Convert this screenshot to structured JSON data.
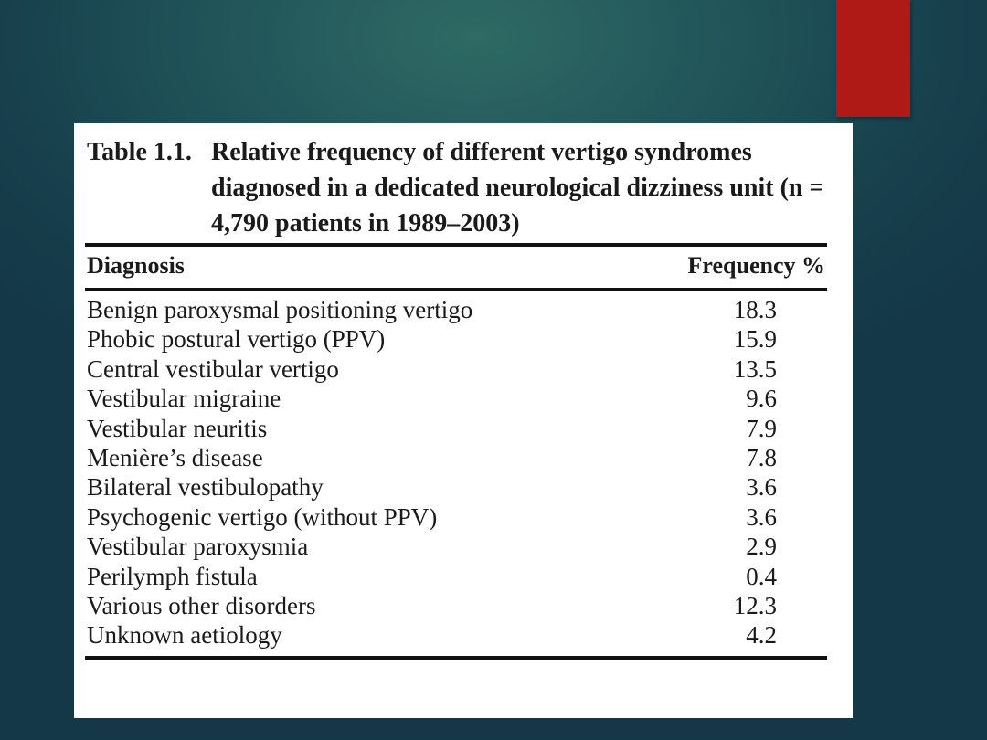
{
  "slide": {
    "accent_color": "#b01a16"
  },
  "table": {
    "caption_number": "Table 1.1.",
    "caption_text": "Relative frequency of different vertigo syndromes diagnosed in a dedicated neurological dizziness unit (n = 4,790 patients in 1989–2003)",
    "headers": {
      "diagnosis": "Diagnosis",
      "frequency": "Frequency %"
    },
    "rows": [
      {
        "diagnosis": "Benign paroxysmal positioning vertigo",
        "frequency": "18.3"
      },
      {
        "diagnosis": "Phobic postural vertigo (PPV)",
        "frequency": "15.9"
      },
      {
        "diagnosis": "Central vestibular vertigo",
        "frequency": "13.5"
      },
      {
        "diagnosis": "Vestibular migraine",
        "frequency": "9.6"
      },
      {
        "diagnosis": "Vestibular neuritis",
        "frequency": "7.9"
      },
      {
        "diagnosis": "Menière’s disease",
        "frequency": "7.8"
      },
      {
        "diagnosis": "Bilateral vestibulopathy",
        "frequency": "3.6"
      },
      {
        "diagnosis": "Psychogenic vertigo (without PPV)",
        "frequency": "3.6"
      },
      {
        "diagnosis": "Vestibular paroxysmia",
        "frequency": "2.9"
      },
      {
        "diagnosis": "Perilymph fistula",
        "frequency": "0.4"
      },
      {
        "diagnosis": "Various other disorders",
        "frequency": "12.3"
      },
      {
        "diagnosis": "Unknown aetiology",
        "frequency": "4.2"
      }
    ]
  }
}
